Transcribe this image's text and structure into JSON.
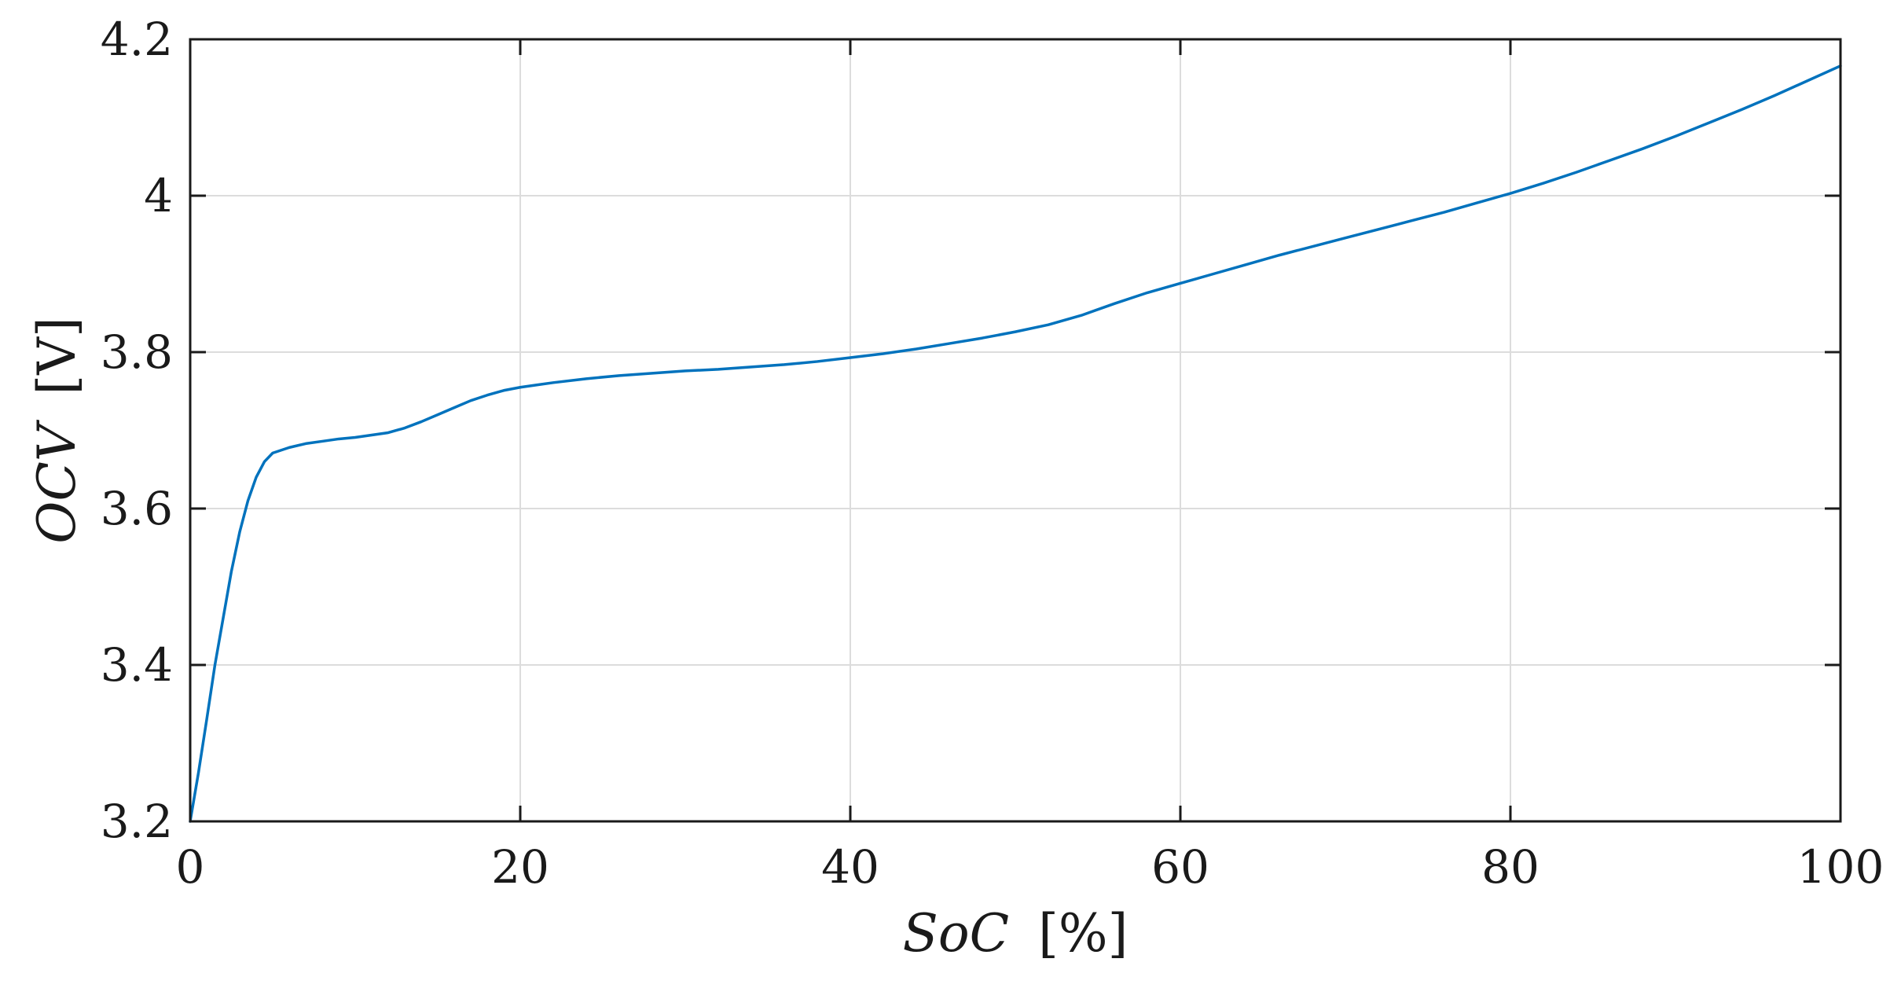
{
  "chart_data": {
    "type": "line",
    "title": "",
    "xlabel": {
      "var": "SoC",
      "unit": "[%]"
    },
    "ylabel": {
      "var": "OCV",
      "unit": "[V]"
    },
    "xlim": [
      0,
      100
    ],
    "ylim": [
      3.2,
      4.2
    ],
    "xticks": [
      "0",
      "20",
      "40",
      "60",
      "80",
      "100"
    ],
    "yticks": [
      "3.2",
      "3.4",
      "3.6",
      "3.8",
      "4",
      "4.2"
    ],
    "grid": true,
    "colors": {
      "line": "#0072bd",
      "grid": "#dcdcdc",
      "axis": "#1a1a1a"
    },
    "series": [
      {
        "x": [
          0,
          0.5,
          1,
          1.5,
          2,
          2.5,
          3,
          3.5,
          4,
          4.5,
          5,
          6,
          7,
          8,
          9,
          10,
          11,
          12,
          13,
          14,
          15,
          16,
          17,
          18,
          19,
          20,
          21,
          22,
          24,
          26,
          28,
          30,
          32,
          34,
          36,
          38,
          40,
          42,
          44,
          46,
          48,
          50,
          52,
          54,
          56,
          58,
          60,
          62,
          64,
          66,
          68,
          70,
          72,
          74,
          76,
          78,
          80,
          82,
          84,
          86,
          88,
          90,
          92,
          94,
          96,
          98,
          100
        ],
        "y": [
          3.2,
          3.262,
          3.33,
          3.4,
          3.46,
          3.52,
          3.57,
          3.61,
          3.64,
          3.66,
          3.671,
          3.678,
          3.683,
          3.686,
          3.689,
          3.691,
          3.694,
          3.697,
          3.703,
          3.711,
          3.72,
          3.729,
          3.738,
          3.745,
          3.751,
          3.755,
          3.758,
          3.761,
          3.766,
          3.77,
          3.773,
          3.776,
          3.778,
          3.781,
          3.784,
          3.788,
          3.793,
          3.798,
          3.804,
          3.811,
          3.818,
          3.826,
          3.835,
          3.847,
          3.862,
          3.876,
          3.888,
          3.9,
          3.912,
          3.924,
          3.935,
          3.946,
          3.957,
          3.968,
          3.979,
          3.991,
          4.003,
          4.016,
          4.03,
          4.045,
          4.06,
          4.076,
          4.093,
          4.11,
          4.128,
          4.147,
          4.166
        ]
      }
    ]
  }
}
